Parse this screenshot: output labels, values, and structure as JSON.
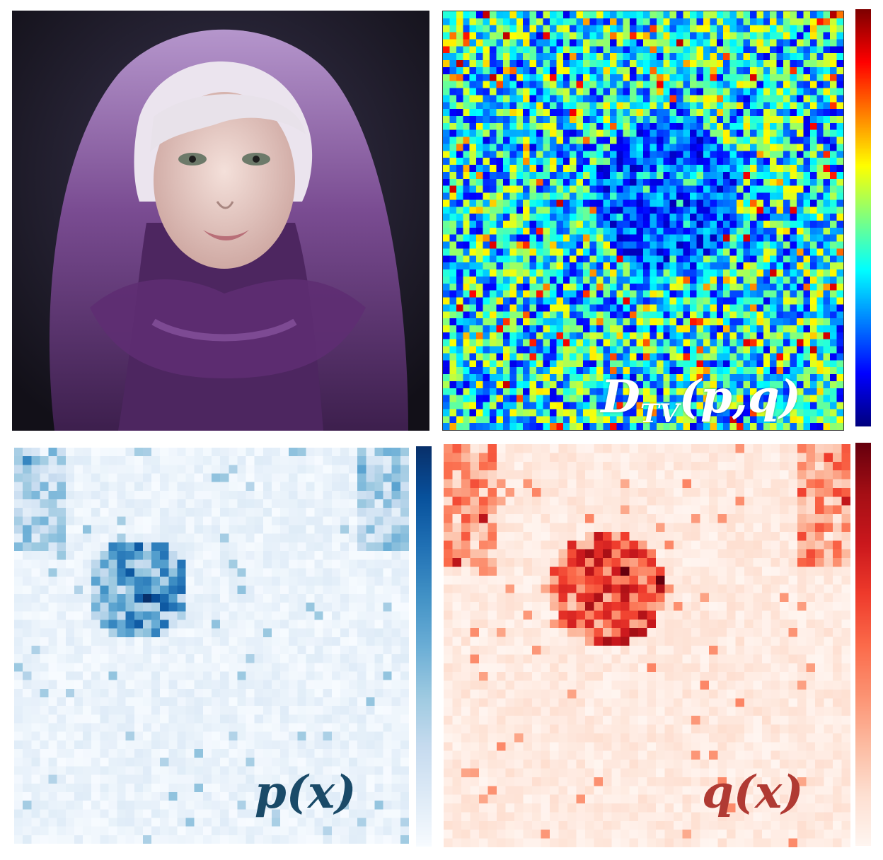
{
  "photo": {
    "description_icon": "hooded-portrait-image",
    "colors": {
      "background": "#1c1a2a",
      "hood": "#6a3f7e",
      "hood_light": "#b596cc",
      "hair": "#e6dfe8",
      "skin": "#e8cfc8"
    }
  },
  "panels": {
    "dtv": {
      "label_main": "D",
      "label_sub": "TV",
      "label_args": "(p,q)",
      "colormap": "jet"
    },
    "p": {
      "label": "p(x)",
      "colormap": "blues",
      "color": "#1a4a68"
    },
    "q": {
      "label": "q(x)",
      "colormap": "reds",
      "color": "#b03a33"
    }
  },
  "colormaps": {
    "jet": [
      "#00007f",
      "#0000ff",
      "#0080ff",
      "#00ffff",
      "#80ff80",
      "#ffff00",
      "#ff8000",
      "#ff0000",
      "#7f0000"
    ],
    "blues": [
      "#f7fbff",
      "#deebf7",
      "#c6dbef",
      "#9ecae1",
      "#6baed6",
      "#4292c6",
      "#2171b5",
      "#08519c",
      "#08306b"
    ],
    "reds": [
      "#fff5f0",
      "#fee0d2",
      "#fcbba1",
      "#fc9272",
      "#fb6a4a",
      "#ef3b2c",
      "#cb181d",
      "#a50f15",
      "#67000d"
    ]
  }
}
